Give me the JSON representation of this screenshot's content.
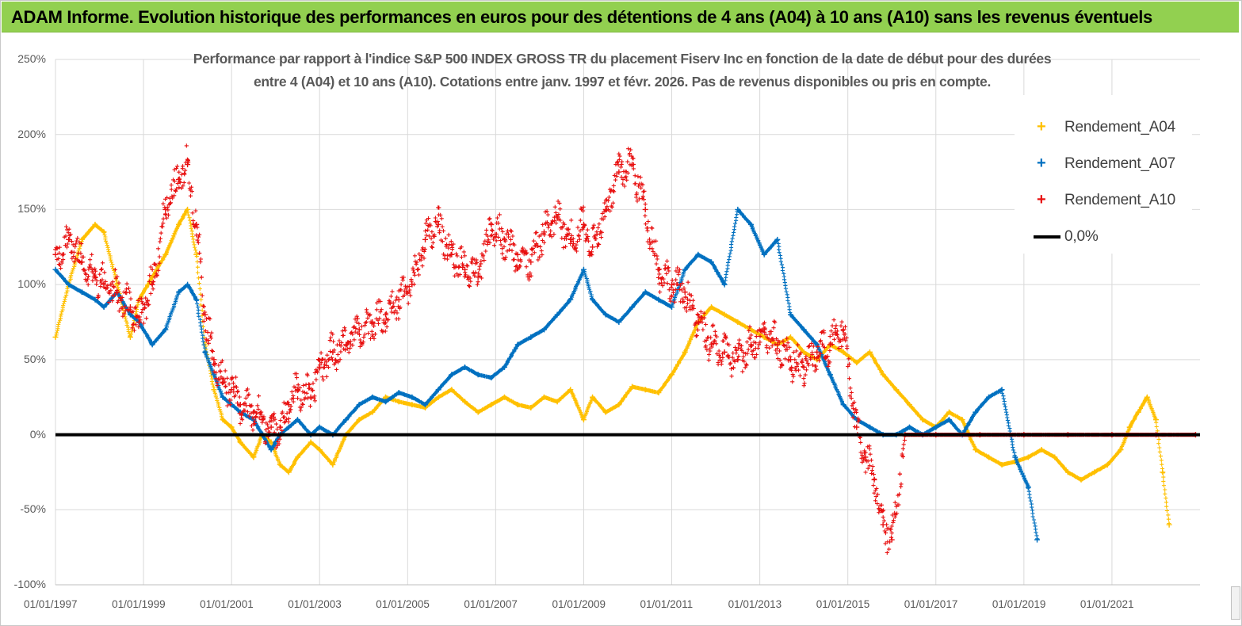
{
  "header": {
    "banner": "ADAM Informe. Evolution historique des performances en euros pour des détentions de 4 ans (A04) à 10 ans (A10) sans les revenus éventuels"
  },
  "chart_data": {
    "type": "scatter",
    "title_line1": "Performance par rapport à l'indice S&P 500 INDEX GROSS TR  du placement Fiserv Inc en fonction de la date de début pour des durées",
    "title_line2": "entre 4 (A04) et 10 ans (A10).  Cotations entre janv. 1997 et févr. 2026.  Pas de revenus disponibles ou pris en compte.",
    "xlabel": "",
    "ylabel": "",
    "xlim": [
      1997.0,
      2023.0
    ],
    "ylim": [
      -100,
      250
    ],
    "y_ticks": [
      250,
      200,
      150,
      100,
      50,
      0,
      -50,
      -100
    ],
    "y_tick_labels": [
      "250%",
      "200%",
      "150%",
      "100%",
      "50%",
      "0%",
      "-50%",
      "-100%"
    ],
    "x_ticks": [
      1997,
      1999,
      2001,
      2003,
      2005,
      2007,
      2009,
      2011,
      2013,
      2015,
      2017,
      2019,
      2021
    ],
    "x_tick_labels": [
      "01/01/1997",
      "01/01/1999",
      "01/01/2001",
      "01/01/2003",
      "01/01/2005",
      "01/01/2007",
      "01/01/2009",
      "01/01/2011",
      "01/01/2013",
      "01/01/2015",
      "01/01/2017",
      "01/01/2019",
      "01/01/2021"
    ],
    "grid": true,
    "legend_position": "top-right",
    "series": [
      {
        "name": "Rendement_A04",
        "color": "#ffc000",
        "marker": "+",
        "x": [
          1997.0,
          1997.3,
          1997.6,
          1997.9,
          1998.1,
          1998.4,
          1998.7,
          1998.9,
          1999.2,
          1999.5,
          1999.8,
          2000.0,
          2000.2,
          2000.4,
          2000.6,
          2000.8,
          2001.0,
          2001.2,
          2001.5,
          2001.7,
          2001.9,
          2002.1,
          2002.3,
          2002.5,
          2002.8,
          2003.0,
          2003.3,
          2003.6,
          2003.9,
          2004.2,
          2004.5,
          2004.8,
          2005.1,
          2005.4,
          2005.7,
          2006.0,
          2006.3,
          2006.6,
          2006.9,
          2007.2,
          2007.5,
          2007.8,
          2008.1,
          2008.4,
          2008.7,
          2009.0,
          2009.2,
          2009.5,
          2009.8,
          2010.1,
          2010.4,
          2010.7,
          2011.0,
          2011.3,
          2011.6,
          2011.9,
          2012.2,
          2012.5,
          2012.8,
          2013.1,
          2013.4,
          2013.7,
          2014.0,
          2014.3,
          2014.6,
          2014.9,
          2015.2,
          2015.5,
          2015.8,
          2016.1,
          2016.4,
          2016.7,
          2017.0,
          2017.3,
          2017.6,
          2017.9,
          2018.2,
          2018.5,
          2018.8,
          2019.1,
          2019.4,
          2019.7,
          2020.0,
          2020.3,
          2020.6,
          2020.9,
          2021.2,
          2021.4,
          2021.6,
          2021.8,
          2022.0,
          2022.15,
          2022.3
        ],
        "values": [
          65,
          100,
          130,
          140,
          135,
          100,
          65,
          90,
          105,
          120,
          140,
          150,
          120,
          60,
          30,
          10,
          5,
          -5,
          -15,
          0,
          -5,
          -20,
          -25,
          -15,
          -5,
          -10,
          -20,
          0,
          10,
          15,
          25,
          22,
          20,
          18,
          25,
          30,
          22,
          15,
          20,
          25,
          20,
          18,
          25,
          22,
          30,
          10,
          25,
          15,
          20,
          32,
          30,
          28,
          40,
          55,
          75,
          85,
          80,
          75,
          70,
          65,
          60,
          65,
          55,
          50,
          60,
          55,
          48,
          55,
          40,
          30,
          20,
          10,
          5,
          15,
          10,
          -10,
          -15,
          -20,
          -18,
          -15,
          -10,
          -15,
          -25,
          -30,
          -25,
          -20,
          -10,
          5,
          15,
          25,
          10,
          -25,
          -60
        ]
      },
      {
        "name": "Rendement_A07",
        "color": "#0070c0",
        "marker": "+",
        "x": [
          1997.0,
          1997.3,
          1997.6,
          1997.9,
          1998.1,
          1998.4,
          1998.7,
          1998.9,
          1999.2,
          1999.5,
          1999.8,
          2000.0,
          2000.2,
          2000.4,
          2000.6,
          2000.8,
          2001.0,
          2001.2,
          2001.5,
          2001.7,
          2001.9,
          2002.1,
          2002.3,
          2002.5,
          2002.8,
          2003.0,
          2003.3,
          2003.6,
          2003.9,
          2004.2,
          2004.5,
          2004.8,
          2005.1,
          2005.4,
          2005.7,
          2006.0,
          2006.3,
          2006.6,
          2006.9,
          2007.2,
          2007.5,
          2007.8,
          2008.1,
          2008.4,
          2008.7,
          2009.0,
          2009.2,
          2009.5,
          2009.8,
          2010.1,
          2010.4,
          2010.7,
          2011.0,
          2011.3,
          2011.6,
          2011.9,
          2012.2,
          2012.5,
          2012.8,
          2013.1,
          2013.4,
          2013.7,
          2014.0,
          2014.3,
          2014.6,
          2014.9,
          2015.2,
          2015.5,
          2015.8,
          2016.1,
          2016.4,
          2016.7,
          2017.0,
          2017.3,
          2017.6,
          2017.9,
          2018.2,
          2018.5,
          2018.8,
          2019.1,
          2019.3
        ],
        "values": [
          110,
          100,
          95,
          90,
          85,
          95,
          80,
          75,
          60,
          70,
          95,
          100,
          90,
          55,
          40,
          25,
          20,
          15,
          10,
          0,
          -10,
          0,
          5,
          10,
          0,
          5,
          0,
          10,
          20,
          25,
          22,
          28,
          25,
          20,
          30,
          40,
          45,
          40,
          38,
          45,
          60,
          65,
          70,
          80,
          90,
          110,
          90,
          80,
          75,
          85,
          95,
          90,
          85,
          110,
          120,
          115,
          100,
          150,
          140,
          120,
          130,
          80,
          70,
          60,
          40,
          20,
          10,
          5,
          0,
          0,
          5,
          0,
          5,
          10,
          0,
          15,
          25,
          30,
          -15,
          -35,
          -70
        ]
      },
      {
        "name": "Rendement_A10",
        "color": "#e81010",
        "marker": "+",
        "x": [
          1997.0,
          1997.3,
          1997.6,
          1997.9,
          1998.1,
          1998.4,
          1998.7,
          1998.9,
          1999.2,
          1999.5,
          1999.8,
          2000.0,
          2000.2,
          2000.4,
          2000.6,
          2000.8,
          2001.0,
          2001.2,
          2001.5,
          2001.7,
          2001.9,
          2002.1,
          2002.3,
          2002.5,
          2002.8,
          2003.0,
          2003.3,
          2003.6,
          2003.9,
          2004.2,
          2004.5,
          2004.8,
          2005.1,
          2005.4,
          2005.7,
          2006.0,
          2006.3,
          2006.6,
          2006.9,
          2007.2,
          2007.5,
          2007.8,
          2008.1,
          2008.4,
          2008.7,
          2009.0,
          2009.2,
          2009.5,
          2009.8,
          2010.1,
          2010.4,
          2010.7,
          2011.0,
          2011.3,
          2011.6,
          2011.9,
          2012.2,
          2012.5,
          2012.8,
          2013.1,
          2013.4,
          2013.7,
          2014.0,
          2014.3,
          2014.6,
          2014.9,
          2015.2,
          2015.4,
          2015.6,
          2015.8,
          2016.0,
          2016.3,
          2017.0,
          2018.0,
          2019.0,
          2020.0,
          2021.0,
          2022.0,
          2022.9
        ],
        "values": [
          120,
          130,
          115,
          105,
          100,
          95,
          85,
          75,
          100,
          150,
          170,
          180,
          140,
          80,
          50,
          35,
          30,
          20,
          15,
          10,
          5,
          5,
          20,
          30,
          25,
          45,
          55,
          60,
          70,
          75,
          80,
          90,
          100,
          130,
          140,
          120,
          110,
          105,
          140,
          130,
          120,
          115,
          135,
          145,
          130,
          140,
          125,
          150,
          175,
          180,
          150,
          110,
          100,
          95,
          75,
          60,
          55,
          50,
          60,
          70,
          60,
          50,
          45,
          55,
          60,
          70,
          5,
          -15,
          -30,
          -60,
          -70,
          0,
          0,
          0,
          0,
          0,
          0,
          0,
          0
        ]
      },
      {
        "name": "0,0%",
        "color": "#000000",
        "marker": "line",
        "x": [
          1997.0,
          2023.0
        ],
        "values": [
          0,
          0
        ]
      }
    ]
  }
}
